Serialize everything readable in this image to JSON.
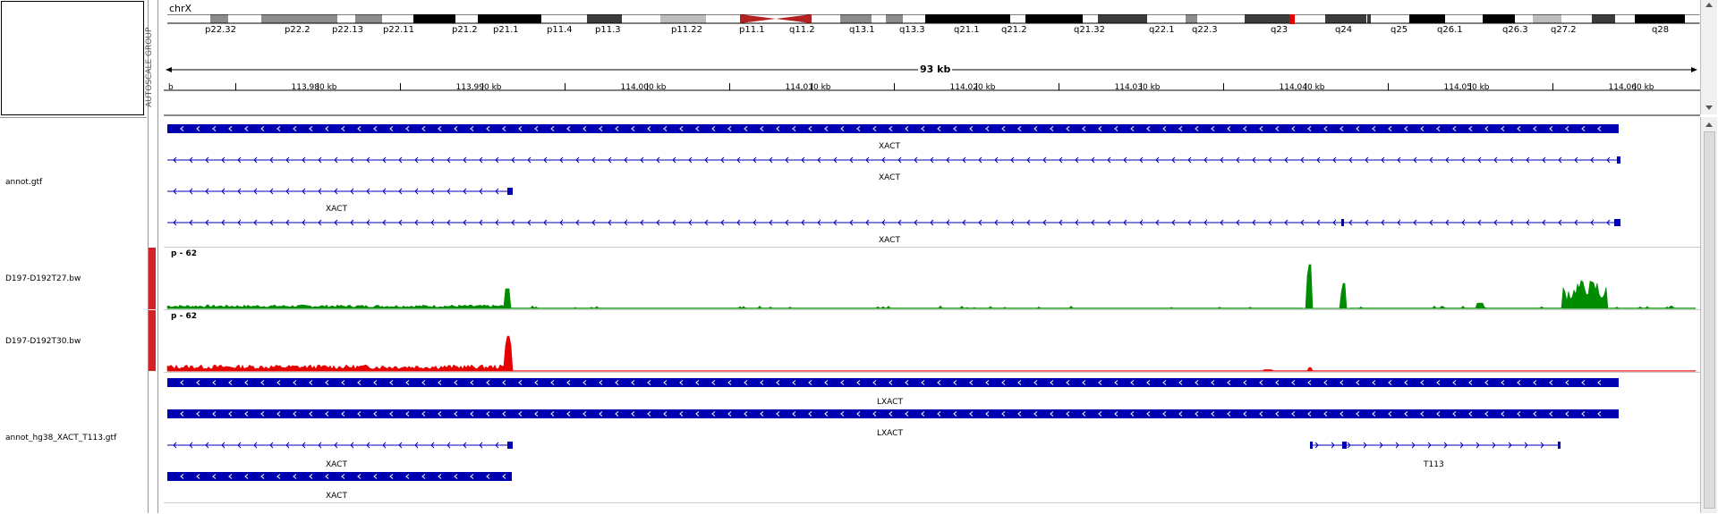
{
  "header": {
    "attribute_panel_label": "",
    "chromosome": "chrX",
    "bands": [
      "p22.32",
      "p22.2",
      "p22.13",
      "p22.11",
      "p21.2",
      "p21.1",
      "p11.4",
      "p11.3",
      "p11.22",
      "p11.1",
      "q11.2",
      "q13.1",
      "q13.3",
      "q21.1",
      "q21.2",
      "q21.32",
      "q22.1",
      "q22.3",
      "q23",
      "q24",
      "q25",
      "q26.1",
      "q26.3",
      "q27.2",
      "q28"
    ],
    "span_label": "93 kb",
    "ruler_ticks": [
      "113,980 kb",
      "113,990 kb",
      "114,000 kb",
      "114,010 kb",
      "114,020 kb",
      "114,030 kb",
      "114,040 kb",
      "114,050 kb",
      "114,060 kb"
    ],
    "ruler_start_fragment": "b",
    "group_label": "AUTOSCALE GROUP"
  },
  "tracks": [
    {
      "name": "annot.gtf",
      "color": "#0000b2",
      "features": [
        {
          "label": "",
          "kind": "block",
          "start": 0,
          "end": 1622
        },
        {
          "label": "XACT",
          "kind": "intron",
          "start": 0,
          "end": 1622,
          "exons": [
            [
              1620,
              1624
            ]
          ]
        },
        {
          "label": "XACT",
          "kind": "intron",
          "start": 0,
          "end": 385,
          "exons": [
            [
              380,
              386
            ]
          ]
        },
        {
          "label": "XACT",
          "kind": "intron",
          "start": 0,
          "end": 1622,
          "exons": [
            [
              1312,
              1315
            ],
            [
              1617,
              1624
            ]
          ],
          "label_pos": 810
        },
        {
          "label": "XACT",
          "kind": "label",
          "pos": 810
        }
      ]
    },
    {
      "name": "D197-D192T27.bw",
      "data_range": "p - 62",
      "color": "#008c00"
    },
    {
      "name": "D197-D192T30.bw",
      "data_range": "p - 62",
      "color": "#e60000"
    },
    {
      "name": "annot_hg38_XACT_T113.gtf",
      "color": "#0000b2",
      "features": [
        {
          "label": "",
          "kind": "block",
          "start": 0,
          "end": 1622
        },
        {
          "label": "LXACT",
          "kind": "block",
          "start": 0,
          "end": 1622
        },
        {
          "label": "XACT",
          "kind": "intron",
          "start": 0,
          "end": 385
        },
        {
          "label": "T113",
          "kind": "intron_fwd",
          "start": 1277,
          "end": 1557
        },
        {
          "label": "XACT",
          "kind": "block",
          "start": 0,
          "end": 385
        }
      ]
    }
  ],
  "track_labels": {
    "annot_t1_row2": "XACT",
    "annot_t1_row3": "XACT",
    "annot_t1_row4": "XACT",
    "annot_t1_row5": "XACT",
    "annot_t2_row2": "LXACT",
    "annot_t2_row3": "LXACT",
    "annot_t2_row4": "XACT",
    "annot_t2_row4b": "T113",
    "annot_t2_row5": "XACT"
  },
  "colors": {
    "feature": "#0000b2",
    "coverage_t27": "#008c00",
    "coverage_t30": "#e60000",
    "group_marker": "#d4222a",
    "centromere": "#b22222",
    "band_highlight": "#e60000"
  }
}
